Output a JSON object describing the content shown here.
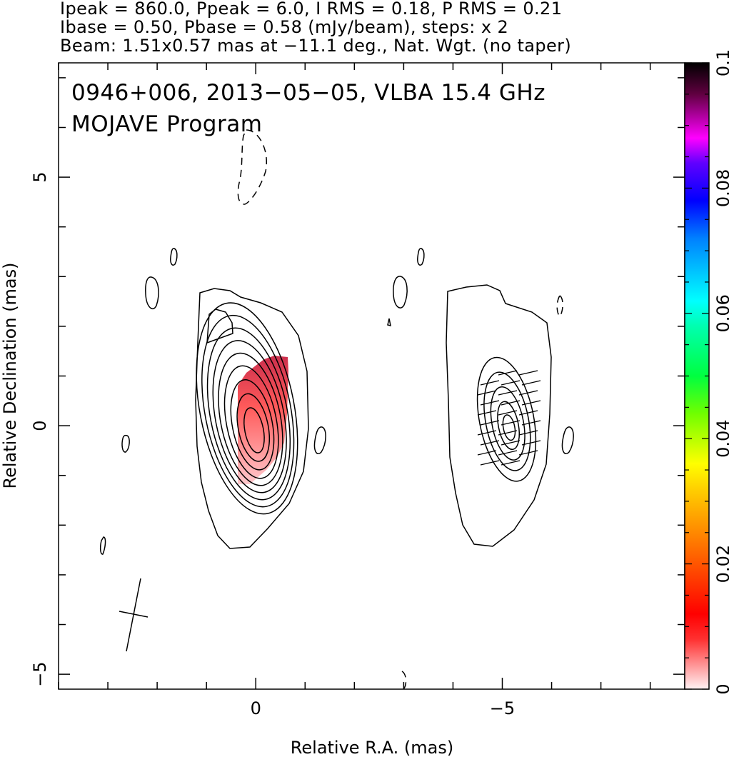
{
  "header": {
    "line1": "Ipeak = 860.0, Ppeak = 6.0, I RMS = 0.18, P RMS = 0.21",
    "line2": "Ibase = 0.50, Pbase = 0.58 (mJy/beam), steps: x 2",
    "line3": "Beam: 1.51x0.57 mas at −11.1 deg., Nat. Wgt. (no taper)"
  },
  "chart_data": [
    {
      "type": "heatmap",
      "panel": "total-intensity",
      "title": "0946+006, 2013−05−05, VLBA 15.4 GHz",
      "subtitle": "MOJAVE Program",
      "xlabel": "Relative R.A. (mas)",
      "ylabel": "Relative Declination (mas)",
      "xlim": [
        4,
        -8.7
      ],
      "ylim": [
        -5.3,
        7.3
      ],
      "x_ticks": [
        0,
        -5
      ],
      "x_tick_labels": [
        "0",
        "−5"
      ],
      "y_ticks": [
        5,
        0,
        -5
      ],
      "y_tick_labels": [
        "5",
        "0",
        "−5"
      ],
      "contour_base_mJy_per_beam": 0.5,
      "contour_step_factor": 2,
      "peak_mJy_per_beam": 860.0,
      "core_position": [
        0.1,
        0.1
      ],
      "beam": {
        "major_mas": 1.51,
        "minor_mas": 0.57,
        "pa_deg": -11.1
      },
      "grid": false
    },
    {
      "type": "heatmap",
      "panel": "polarization-colorbar",
      "ticks": [
        0,
        0.02,
        0.04,
        0.06,
        0.08,
        0.1
      ],
      "tick_labels": [
        "0",
        "0.02",
        "0.04",
        "0.06",
        "0.08",
        "0.1"
      ],
      "range": [
        0,
        0.1
      ],
      "colors": [
        "#ffe8ec",
        "#ff0000",
        "#ff8000",
        "#ffff00",
        "#00ff40",
        "#00ffff",
        "#0000ff",
        "#ff00ff",
        "#000000"
      ]
    }
  ]
}
